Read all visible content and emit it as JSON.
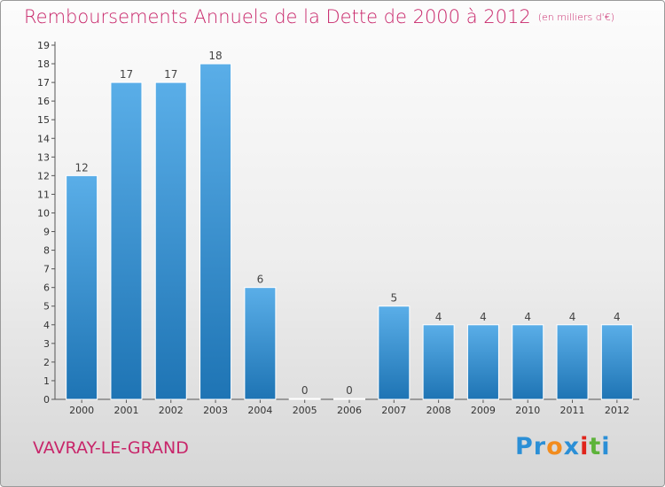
{
  "title": "Remboursements Annuels de la Dette de 2000 à 2012",
  "subtitle": "(en milliers d'€)",
  "commune": "VAVRAY-LE-GRAND",
  "logo": {
    "p1": "Pr",
    "p2": "o",
    "p3": "x",
    "p4": "i",
    "p5": "t",
    "p6": "i"
  },
  "colors": {
    "bar_top": "#5aaee8",
    "bar_bottom": "#1e74b4",
    "title": "#c8266a"
  },
  "chart_data": {
    "type": "bar",
    "categories": [
      "2000",
      "2001",
      "2002",
      "2003",
      "2004",
      "2005",
      "2006",
      "2007",
      "2008",
      "2009",
      "2010",
      "2011",
      "2012"
    ],
    "values": [
      12,
      17,
      17,
      18,
      6,
      0,
      0,
      5,
      4,
      4,
      4,
      4,
      4
    ],
    "ylim": [
      0,
      19
    ],
    "yticks": [
      0,
      1,
      2,
      3,
      4,
      5,
      6,
      7,
      8,
      9,
      10,
      11,
      12,
      13,
      14,
      15,
      16,
      17,
      18,
      19
    ],
    "xlabel": "",
    "ylabel": "",
    "grid": false
  }
}
